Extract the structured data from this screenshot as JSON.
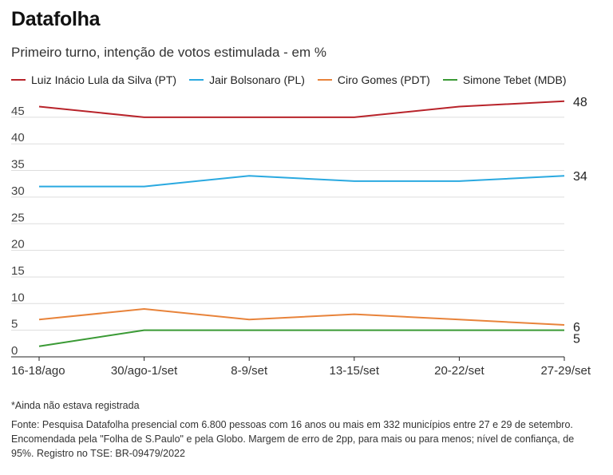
{
  "header": {
    "title": "Datafolha",
    "subtitle": "Primeiro turno, intenção de votos estimulada - em %"
  },
  "chart_data": {
    "type": "line",
    "x": [
      "16-18/ago",
      "30/ago-1/set",
      "8-9/set",
      "13-15/set",
      "20-22/set",
      "27-29/set"
    ],
    "ylim": [
      0,
      48
    ],
    "yticks": [
      0,
      5,
      10,
      15,
      20,
      25,
      30,
      35,
      40,
      45
    ],
    "grid": true,
    "legend_position": "top",
    "series": [
      {
        "name": "Luiz Inácio Lula da Silva (PT)",
        "color": "#b8232a",
        "values": [
          47,
          45,
          45,
          45,
          47,
          48
        ],
        "end_label": "48"
      },
      {
        "name": "Jair Bolsonaro (PL)",
        "color": "#2aa9e0",
        "values": [
          32,
          32,
          34,
          33,
          33,
          34
        ],
        "end_label": "34"
      },
      {
        "name": "Ciro Gomes (PDT)",
        "color": "#e8833a",
        "values": [
          7,
          9,
          7,
          8,
          7,
          6
        ],
        "end_label": "6"
      },
      {
        "name": "Simone Tebet (MDB)",
        "color": "#3a9a35",
        "values": [
          2,
          5,
          5,
          5,
          5,
          5
        ],
        "end_label": "5"
      }
    ]
  },
  "footer": {
    "note": "*Ainda não estava registrada",
    "source": "Fonte: Pesquisa Datafolha presencial com 6.800 pessoas com 16 anos ou mais em 332 municípios entre 27 e 29 de setembro. Encomendada pela \"Folha de S.Paulo\" e pela Globo. Margem de erro de 2pp, para mais ou para menos; nível de confiança, de 95%. Registro no TSE: BR-09479/2022"
  }
}
